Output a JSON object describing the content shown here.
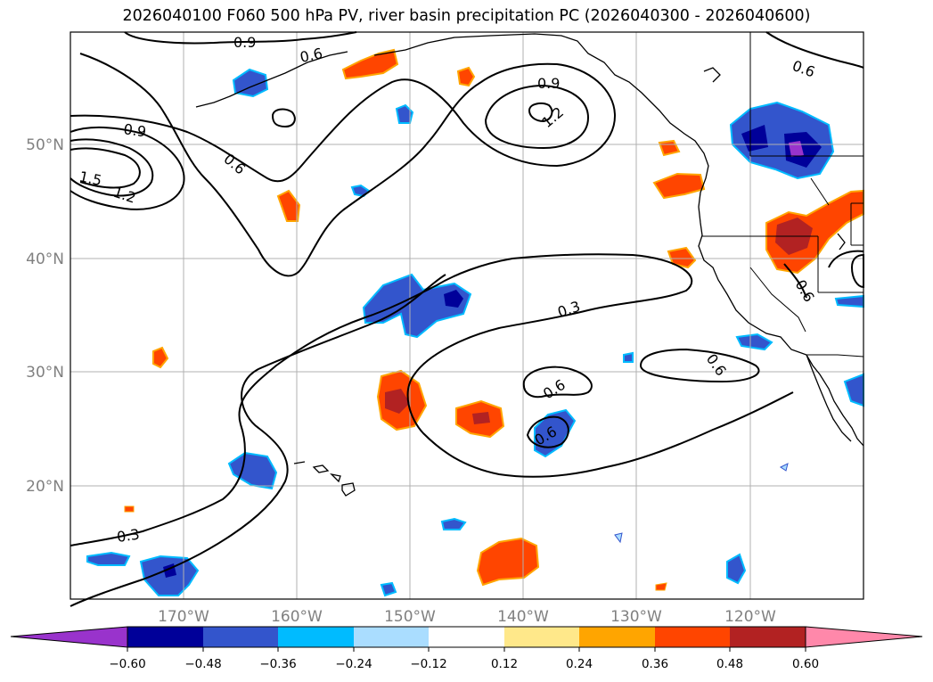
{
  "title": "2026040100 F060 500 hPa PV, river basin precipitation PC (2026040300 - 2026040600)",
  "map": {
    "lon_range": [
      -180,
      -110
    ],
    "lat_range": [
      10,
      60
    ],
    "lat_labels": [
      {
        "lat": 50,
        "text": "50°N"
      },
      {
        "lat": 40,
        "text": "40°N"
      },
      {
        "lat": 30,
        "text": "30°N"
      },
      {
        "lat": 20,
        "text": "20°N"
      }
    ],
    "lon_labels": [
      {
        "lon": -170,
        "text": "170°W"
      },
      {
        "lon": -160,
        "text": "160°W"
      },
      {
        "lon": -150,
        "text": "150°W"
      },
      {
        "lon": -140,
        "text": "140°W"
      },
      {
        "lon": -130,
        "text": "130°W"
      },
      {
        "lon": -120,
        "text": "120°W"
      }
    ],
    "contour_labels": [
      "0.9",
      "0.6",
      "0.9",
      "1.2",
      "0.6",
      "0.9",
      "1.5",
      "1.2",
      "0.6",
      "0.3",
      "0.6",
      "0.6",
      "0.6",
      "0.3",
      "0.6"
    ]
  },
  "colorbar": {
    "ticks": [
      "−0.60",
      "−0.48",
      "−0.36",
      "−0.24",
      "−0.12",
      "0.12",
      "0.24",
      "0.36",
      "0.48",
      "0.60"
    ],
    "colors": [
      "#9933cc",
      "#000099",
      "#3355cc",
      "#00bbff",
      "#aaddff",
      "#ffffff",
      "#ffe88a",
      "#ffa500",
      "#ff4500",
      "#b22222",
      "#ff88aa"
    ]
  }
}
